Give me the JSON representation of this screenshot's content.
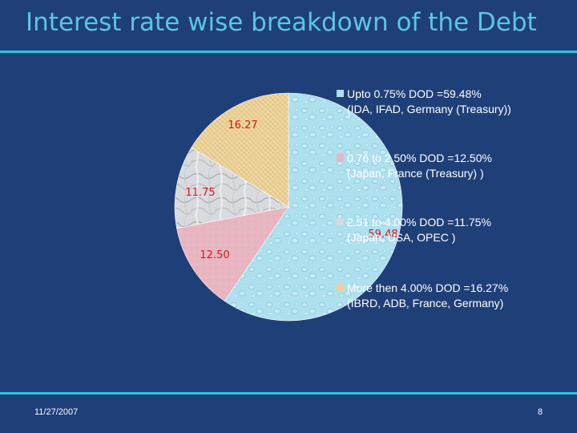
{
  "slide": {
    "title": "Interest rate wise breakdown of the Debt",
    "date": "11/27/2007",
    "page_number": "8"
  },
  "chart_data": {
    "type": "pie",
    "title": "",
    "start_angle_deg": 0,
    "direction": "clockwise",
    "slices": [
      {
        "value": 59.48,
        "label": "59.48",
        "legend_line1": "Upto 0.75%   DOD =59.48%",
        "legend_line2": "(IDA, IFAD, Germany (Treasury))",
        "color": "#aee0ee",
        "texture": "water-drops"
      },
      {
        "value": 12.5,
        "label": "12.50",
        "legend_line1": "0.76 to 2.50%   DOD =12.50%",
        "legend_line2": "(Japan, France (Treasury) )",
        "color": "#e8b6c0",
        "texture": "pink-solid"
      },
      {
        "value": 11.75,
        "label": "11.75",
        "legend_line1": "2.51 to 4.00%   DOD =11.75%",
        "legend_line2": "(Japan, USA, OPEC )",
        "color": "#d6d8dc",
        "texture": "marble"
      },
      {
        "value": 16.27,
        "label": "16.27",
        "legend_line1": "More then  4.00%   DOD =16.27%",
        "legend_line2": "(IBRD, ADB, France, Germany)",
        "color": "#ecd29a",
        "texture": "woven"
      }
    ],
    "label_color": "#d41818",
    "legend_position": "right"
  }
}
